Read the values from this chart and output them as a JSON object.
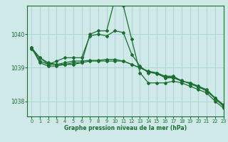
{
  "xlabel": "Graphe pression niveau de la mer (hPa)",
  "background_color": "#cfe8e8",
  "grid_color": "#a8d0d0",
  "line_color": "#1a6e30",
  "xlim": [
    -0.5,
    23
  ],
  "ylim": [
    1037.55,
    1040.85
  ],
  "yticks": [
    1038,
    1039,
    1040
  ],
  "xticks": [
    0,
    1,
    2,
    3,
    4,
    5,
    6,
    7,
    8,
    9,
    10,
    11,
    12,
    13,
    14,
    15,
    16,
    17,
    18,
    19,
    20,
    21,
    22,
    23
  ],
  "series": [
    [
      1039.55,
      1039.3,
      1039.15,
      1039.1,
      1039.1,
      1039.1,
      1039.15,
      1040.0,
      1040.1,
      1040.1,
      1041.05,
      1040.85,
      1039.85,
      1038.85,
      1038.55,
      1038.55,
      1038.55,
      1038.6,
      1038.55,
      1038.45,
      1038.35,
      1038.25,
      1038.0,
      1037.8
    ],
    [
      1039.6,
      1039.15,
      1039.05,
      1039.05,
      1039.1,
      1039.15,
      1039.15,
      1039.2,
      1039.2,
      1039.2,
      1039.2,
      1039.2,
      1039.1,
      1039.0,
      1038.9,
      1038.85,
      1038.7,
      1038.7,
      1038.6,
      1038.55,
      1038.45,
      1038.3,
      1038.1,
      1037.88
    ],
    [
      1039.6,
      1039.2,
      1039.1,
      1039.1,
      1039.15,
      1039.2,
      1039.2,
      1039.22,
      1039.22,
      1039.25,
      1039.25,
      1039.2,
      1039.1,
      1039.0,
      1038.88,
      1038.82,
      1038.72,
      1038.72,
      1038.62,
      1038.52,
      1038.42,
      1038.32,
      1038.08,
      1037.85
    ],
    [
      1039.6,
      1039.3,
      1039.1,
      1039.2,
      1039.3,
      1039.3,
      1039.3,
      1039.95,
      1040.0,
      1039.95,
      1040.1,
      1040.05,
      1039.4,
      1039.05,
      1038.85,
      1038.85,
      1038.75,
      1038.75,
      1038.6,
      1038.55,
      1038.45,
      1038.35,
      1038.1,
      1037.9
    ]
  ]
}
